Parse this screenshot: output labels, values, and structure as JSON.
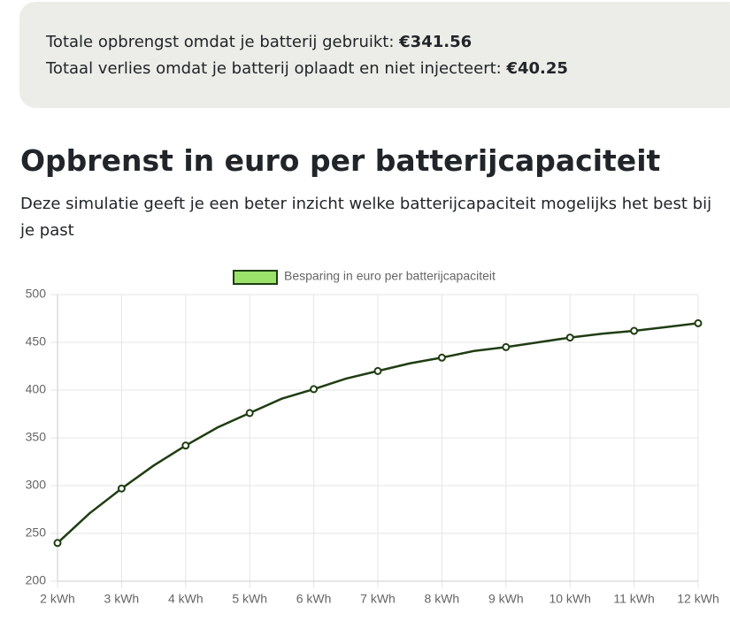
{
  "summary": {
    "lines": [
      {
        "label": "Totale opbrengst omdat je batterij gebruikt:",
        "value": "€341.56"
      },
      {
        "label": "Totaal verlies omdat je batterij oplaadt en niet injecteert:",
        "value": "€40.25"
      }
    ]
  },
  "heading": "Opbrenst in euro per batterijcapaciteit",
  "description": "Deze simulatie geeft je een beter inzicht welke batterijcapaciteit mogelijks het best bij je past",
  "chart_data": {
    "type": "line",
    "categories": [
      "2 kWh",
      null,
      "3 kWh",
      null,
      "4 kWh",
      null,
      "5 kWh",
      null,
      "6 kWh",
      null,
      "7 kWh",
      null,
      "8 kWh",
      null,
      "9 kWh",
      null,
      "10 kWh",
      null,
      "11 kWh",
      null,
      "12 kWh"
    ],
    "series": [
      {
        "name": "Besparing in euro per batterijcapaciteit",
        "color": "#1f3d12",
        "fill": "#9be26a",
        "values": [
          240,
          271,
          297,
          321,
          342,
          361,
          376,
          391,
          401,
          412,
          420,
          428,
          434,
          441,
          445,
          450,
          455,
          459,
          462,
          466,
          470
        ]
      }
    ],
    "ylim": [
      200,
      500
    ],
    "yticks": [
      200,
      250,
      300,
      350,
      400,
      450,
      500
    ],
    "grid": true,
    "legend": "top"
  }
}
